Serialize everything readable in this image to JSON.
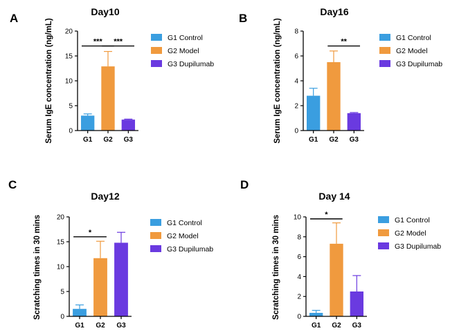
{
  "chart_data": [
    {
      "type": "bar",
      "panel_letter": "A",
      "title": "Day10",
      "ylabel": "Serum IgE concentration (ng/mL)",
      "categories": [
        "G1",
        "G2",
        "G3"
      ],
      "values": [
        3.0,
        12.9,
        2.2
      ],
      "errors": [
        0.35,
        3.0,
        0.1
      ],
      "ylim": [
        0,
        20
      ],
      "yticks": [
        0,
        5,
        10,
        15,
        20
      ],
      "yticks_labels": [
        "0",
        "5",
        "10",
        "15",
        "20"
      ],
      "significance": [
        {
          "from": 0,
          "to": 1,
          "label": "***",
          "level": 17.0
        },
        {
          "from": 1,
          "to": 2,
          "label": "***",
          "level": 17.0
        }
      ],
      "legend": [
        {
          "label": "G1 Control",
          "color": "#3a9ee0"
        },
        {
          "label": "G2 Model",
          "color": "#f09a3e"
        },
        {
          "label": "G3 Dupilumab",
          "color": "#6a3ae0"
        }
      ]
    },
    {
      "type": "bar",
      "panel_letter": "B",
      "title": "Day16",
      "ylabel": "Serum IgE concentration (ng/mL)",
      "categories": [
        "G1",
        "G2",
        "G3"
      ],
      "values": [
        2.8,
        5.5,
        1.4
      ],
      "errors": [
        0.6,
        0.9,
        0.05
      ],
      "ylim": [
        0,
        8
      ],
      "yticks": [
        0,
        2,
        4,
        6,
        8
      ],
      "yticks_labels": [
        "0",
        "2",
        "4",
        "6",
        "8"
      ],
      "significance": [
        {
          "from": 1,
          "to": 2,
          "label": "**",
          "level": 6.8
        }
      ],
      "legend": [
        {
          "label": "G1 Control",
          "color": "#3a9ee0"
        },
        {
          "label": "G2 Model",
          "color": "#f09a3e"
        },
        {
          "label": "G3 Dupilumab",
          "color": "#6a3ae0"
        }
      ]
    },
    {
      "type": "bar",
      "panel_letter": "C",
      "title": "Day12",
      "ylabel": "Scratching times in 30 mins",
      "categories": [
        "G1",
        "G2",
        "G3"
      ],
      "values": [
        1.5,
        11.7,
        14.8
      ],
      "errors": [
        0.8,
        3.4,
        2.1
      ],
      "ylim": [
        0,
        20
      ],
      "yticks": [
        0,
        5,
        10,
        15,
        20
      ],
      "yticks_labels": [
        "0",
        "5",
        "10",
        "15",
        "20"
      ],
      "significance": [
        {
          "from": 0,
          "to": 1,
          "label": "*",
          "level": 16.0
        }
      ],
      "legend": [
        {
          "label": "G1 Control",
          "color": "#3a9ee0"
        },
        {
          "label": "G2 Model",
          "color": "#f09a3e"
        },
        {
          "label": "G3 Dupilumab",
          "color": "#6a3ae0"
        }
      ]
    },
    {
      "type": "bar",
      "panel_letter": "D",
      "title": "Day 14",
      "ylabel": "Scratching times in 30 mins",
      "categories": [
        "G1",
        "G2",
        "G3"
      ],
      "values": [
        0.35,
        7.3,
        2.5
      ],
      "errors": [
        0.25,
        2.1,
        1.6
      ],
      "ylim": [
        0,
        10
      ],
      "yticks": [
        0,
        2,
        4,
        6,
        8,
        10
      ],
      "yticks_labels": [
        "0",
        "2",
        "4",
        "6",
        "8",
        "10"
      ],
      "significance": [
        {
          "from": 0,
          "to": 1,
          "label": "*",
          "level": 9.8
        }
      ],
      "legend": [
        {
          "label": "G1 Control",
          "color": "#3a9ee0"
        },
        {
          "label": "G2 Model",
          "color": "#f09a3e"
        },
        {
          "label": "G3 Dupilumab",
          "color": "#6a3ae0"
        }
      ]
    }
  ],
  "colors": {
    "bar_colors": [
      "#3a9ee0",
      "#f09a3e",
      "#6a3ae0"
    ],
    "axis": "#000000",
    "text": "#000000"
  }
}
